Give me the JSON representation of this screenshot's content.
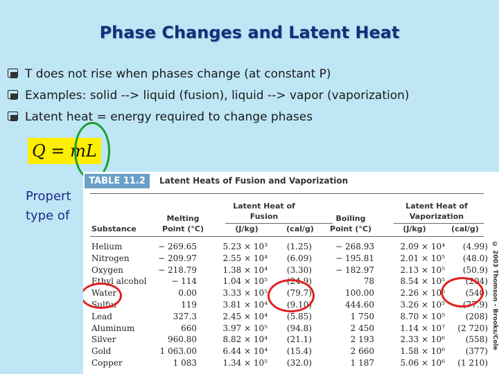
{
  "slide": {
    "title": "Phase Changes and Latent Heat",
    "bullets": [
      "T does not rise when phases change (at constant P)",
      "Examples: solid --> liquid (fusion), liquid --> vapor (vaporization)",
      "Latent heat = energy required to change phases"
    ],
    "formula": "Q = mL",
    "property_text_lines": [
      "Propert",
      "type of"
    ],
    "colors": {
      "title": "#12307a",
      "background": "#bfe6f5",
      "formula_bg": "#ffee00",
      "highlight_green": "#1a9e2e",
      "highlight_red": "#e02020"
    }
  },
  "table": {
    "badge": "TABLE 11.2",
    "caption": "Latent Heats of Fusion and Vaporization",
    "group_headers": {
      "fusion": "Latent Heat of Fusion",
      "vaporization": "Latent Heat of Vaporization"
    },
    "columns": {
      "substance": "Substance",
      "melting": "Melting Point (°C)",
      "fusion_jkg": "(J/kg)",
      "fusion_calg": "(cal/g)",
      "boiling": "Boiling Point (°C)",
      "vap_jkg": "(J/kg)",
      "vap_calg": "(cal/g)"
    },
    "rows": [
      [
        "Helium",
        "− 269.65",
        "5.23 × 10³",
        "(1.25)",
        "− 268.93",
        "2.09 × 10⁴",
        "(4.99)"
      ],
      [
        "Nitrogen",
        "− 209.97",
        "2.55 × 10⁴",
        "(6.09)",
        "− 195.81",
        "2.01 × 10⁵",
        "(48.0)"
      ],
      [
        "Oxygen",
        "− 218.79",
        "1.38 × 10⁴",
        "(3.30)",
        "− 182.97",
        "2.13 × 10⁵",
        "(50.9)"
      ],
      [
        "Ethyl alcohol",
        "− 114",
        "1.04 × 10⁵",
        "(24.9)",
        "78",
        "8.54 × 10⁵",
        "(204)"
      ],
      [
        "Water",
        "0.00",
        "3.33 × 10⁵",
        "(79.7)",
        "100.00",
        "2.26 × 10⁶",
        "(540)"
      ],
      [
        "Sulfur",
        "119",
        "3.81 × 10⁴",
        "(9.10)",
        "444.60",
        "3.26 × 10⁵",
        "(77.9)"
      ],
      [
        "Lead",
        "327.3",
        "2.45 × 10⁴",
        "(5.85)",
        "1 750",
        "8.70 × 10⁵",
        "(208)"
      ],
      [
        "Aluminum",
        "660",
        "3.97 × 10⁵",
        "(94.8)",
        "2 450",
        "1.14 × 10⁷",
        "(2 720)"
      ],
      [
        "Silver",
        "960.80",
        "8.82 × 10⁴",
        "(21.1)",
        "2 193",
        "2.33 × 10⁶",
        "(558)"
      ],
      [
        "Gold",
        "1 063.00",
        "6.44 × 10⁴",
        "(15.4)",
        "2 660",
        "1.58 × 10⁶",
        "(377)"
      ],
      [
        "Copper",
        "1 083",
        "1.34 × 10⁵",
        "(32.0)",
        "1 187",
        "5.06 × 10⁶",
        "(1 210)"
      ]
    ],
    "copyright": "© 2003 Thomson - Brooks/Cole"
  }
}
